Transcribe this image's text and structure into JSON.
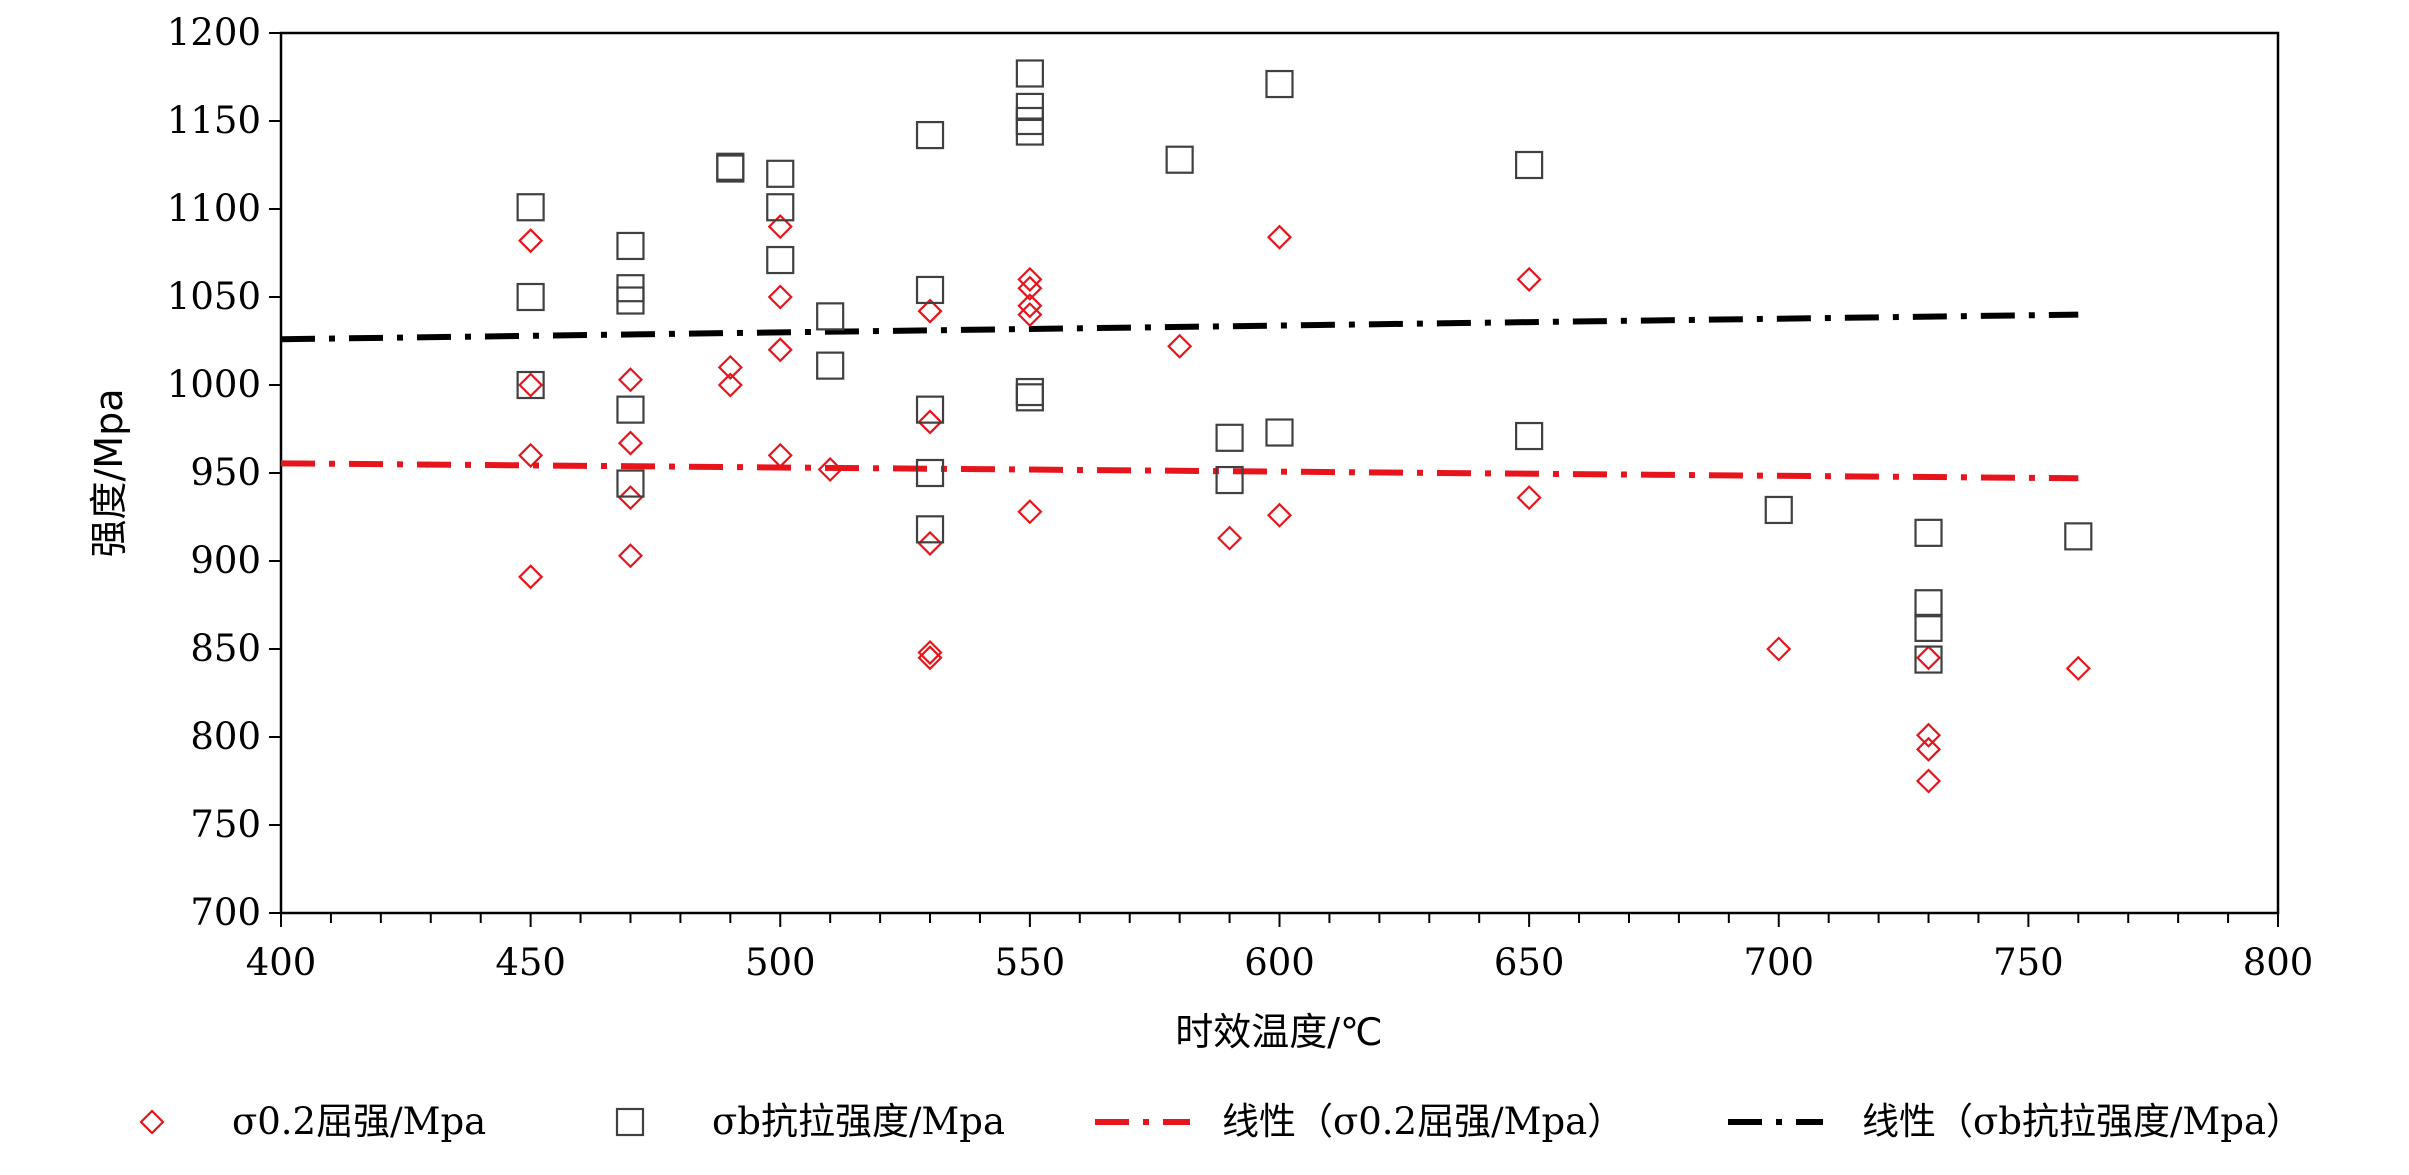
{
  "chart_data": {
    "type": "scatter",
    "title": "",
    "xlabel": "时效温度/℃",
    "ylabel": "强度/Mpa",
    "xlim": [
      400,
      800
    ],
    "ylim": [
      700,
      1200
    ],
    "x_ticks": [
      400,
      450,
      500,
      550,
      600,
      650,
      700,
      750,
      800
    ],
    "y_ticks": [
      700,
      750,
      800,
      850,
      900,
      950,
      1000,
      1050,
      1100,
      1150,
      1200
    ],
    "x_minor_step": 10,
    "grid": false,
    "legend_position": "bottom",
    "series": [
      {
        "name": "σ0.2屈强/Mpa",
        "marker": "diamond",
        "color": "#e8141b",
        "points": [
          [
            450,
            1082
          ],
          [
            450,
            1000
          ],
          [
            450,
            960
          ],
          [
            450,
            891
          ],
          [
            470,
            1003
          ],
          [
            470,
            967
          ],
          [
            470,
            936
          ],
          [
            470,
            903
          ],
          [
            490,
            1010
          ],
          [
            490,
            1000
          ],
          [
            500,
            1090
          ],
          [
            500,
            1050
          ],
          [
            500,
            1020
          ],
          [
            500,
            960
          ],
          [
            510,
            952
          ],
          [
            530,
            1042
          ],
          [
            530,
            979
          ],
          [
            530,
            910
          ],
          [
            530,
            848
          ],
          [
            530,
            845
          ],
          [
            550,
            1060
          ],
          [
            550,
            1055
          ],
          [
            550,
            1045
          ],
          [
            550,
            1040
          ],
          [
            550,
            928
          ],
          [
            580,
            1022
          ],
          [
            590,
            913
          ],
          [
            600,
            1084
          ],
          [
            600,
            926
          ],
          [
            650,
            1060
          ],
          [
            650,
            936
          ],
          [
            700,
            850
          ],
          [
            730,
            845
          ],
          [
            730,
            801
          ],
          [
            730,
            793
          ],
          [
            730,
            775
          ],
          [
            760,
            839
          ]
        ]
      },
      {
        "name": "σb抗拉强度/Mpa",
        "marker": "square",
        "color": "#404040",
        "points": [
          [
            450,
            1101
          ],
          [
            450,
            1050
          ],
          [
            450,
            1000
          ],
          [
            470,
            1079
          ],
          [
            470,
            1055
          ],
          [
            470,
            1048
          ],
          [
            470,
            986
          ],
          [
            470,
            944
          ],
          [
            490,
            1124
          ],
          [
            490,
            1123
          ],
          [
            500,
            1120
          ],
          [
            500,
            1101
          ],
          [
            500,
            1071
          ],
          [
            510,
            1039
          ],
          [
            510,
            1011
          ],
          [
            530,
            1142
          ],
          [
            530,
            1054
          ],
          [
            530,
            986
          ],
          [
            530,
            950
          ],
          [
            530,
            918
          ],
          [
            550,
            1177
          ],
          [
            550,
            1158
          ],
          [
            550,
            1150
          ],
          [
            550,
            1144
          ],
          [
            550,
            996
          ],
          [
            550,
            993
          ],
          [
            580,
            1128
          ],
          [
            590,
            970
          ],
          [
            590,
            946
          ],
          [
            600,
            1171
          ],
          [
            600,
            973
          ],
          [
            650,
            1125
          ],
          [
            650,
            971
          ],
          [
            700,
            929
          ],
          [
            730,
            916
          ],
          [
            730,
            876
          ],
          [
            730,
            862
          ],
          [
            730,
            844
          ],
          [
            760,
            914
          ]
        ]
      },
      {
        "name": "线性（σ0.2屈强/Mpa）",
        "type": "trendline",
        "style": "dash-dot",
        "color": "#e8141b",
        "x": [
          400,
          760
        ],
        "values": [
          955.5,
          947
        ]
      },
      {
        "name": "线性（σb抗拉强度/Mpa）",
        "type": "trendline",
        "style": "dash-dot",
        "color": "#000000",
        "x": [
          400,
          760
        ],
        "values": [
          1026,
          1040
        ]
      }
    ]
  }
}
